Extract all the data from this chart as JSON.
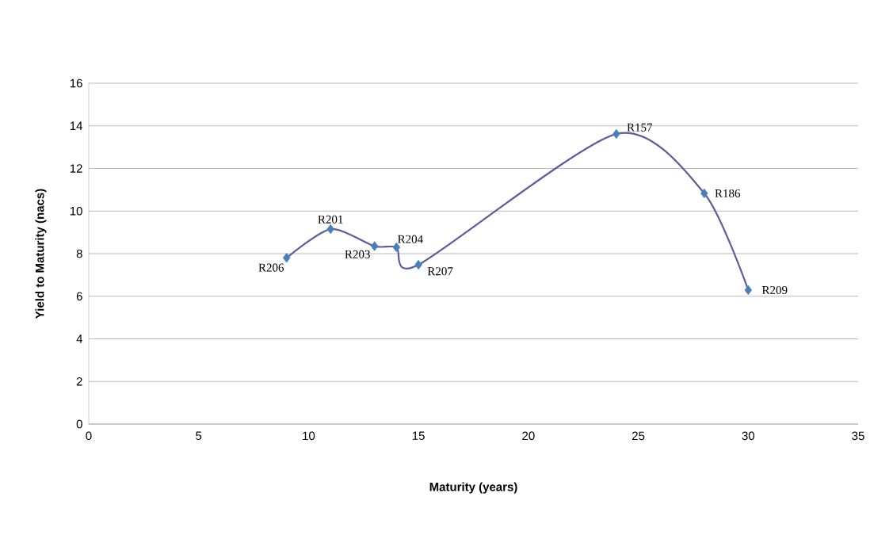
{
  "chart_data": {
    "type": "line",
    "xlabel": "Maturity (years)",
    "ylabel": "Yield to Maturity (nacs)",
    "x": [
      9,
      11,
      13,
      14,
      15,
      24,
      28,
      30
    ],
    "series": [
      {
        "color": "#5d5c9c",
        "colors": [
          "#4a7ebb",
          "#4a7ebb",
          "#4a7ebb",
          "#4a7ebb",
          "#4a7ebb",
          "#4a7ebb",
          "#4a7ebb",
          "#4a7ebb"
        ],
        "values": [
          7.8,
          9.15,
          8.35,
          8.3,
          7.48,
          13.62,
          10.83,
          6.29
        ]
      }
    ],
    "annotations": [
      {
        "text": "R206",
        "x": 9,
        "y": 7.8
      },
      {
        "text": "R201",
        "x": 11,
        "y": 9.15
      },
      {
        "text": "R203",
        "x": 13,
        "y": 8.35
      },
      {
        "text": "R204",
        "x": 14,
        "y": 8.3
      },
      {
        "text": "R207",
        "x": 15,
        "y": 7.48
      },
      {
        "text": "R157",
        "x": 24,
        "y": 13.62
      },
      {
        "text": "R186",
        "x": 28,
        "y": 10.83
      },
      {
        "text": "R209",
        "x": 30,
        "y": 6.29
      }
    ],
    "xlim": [
      0,
      35
    ],
    "xticks": [
      0,
      5,
      10,
      15,
      20,
      25,
      30,
      35
    ],
    "ylim": [
      0,
      16
    ],
    "yticks": [
      0,
      2,
      4,
      6,
      8,
      10,
      12,
      14,
      16
    ],
    "grid": "y",
    "marker": "diamond",
    "line_style": "solid"
  }
}
